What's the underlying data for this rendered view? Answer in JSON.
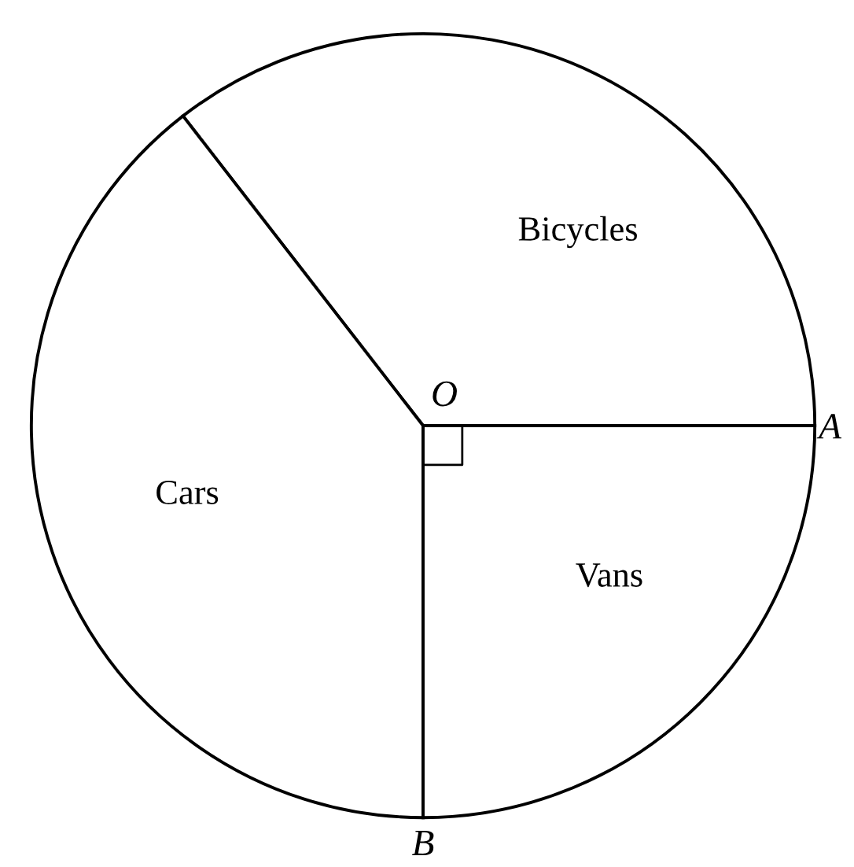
{
  "chart_data": {
    "type": "pie",
    "categories": [
      "Bicycles",
      "Cars",
      "Vans"
    ],
    "values": [
      35.5,
      39.5,
      25
    ],
    "colors": [
      "#ffffff",
      "#ffffff",
      "#ffffff"
    ],
    "annotations": [
      "O",
      "A",
      "B"
    ]
  }
}
